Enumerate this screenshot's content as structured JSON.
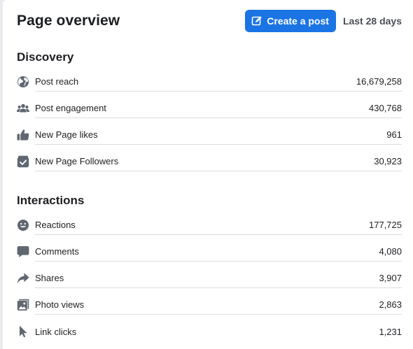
{
  "header": {
    "title": "Page overview",
    "create_post_label": "Create a post",
    "date_range": "Last 28 days"
  },
  "colors": {
    "primary_button": "#1b74e4",
    "icon_gray": "#606770",
    "divider": "#dadde1"
  },
  "discovery": {
    "title": "Discovery",
    "items": [
      {
        "icon": "globe-icon",
        "label": "Post reach",
        "value": "16,679,258"
      },
      {
        "icon": "people-icon",
        "label": "Post engagement",
        "value": "430,768"
      },
      {
        "icon": "thumbs-up-icon",
        "label": "New Page likes",
        "value": "961"
      },
      {
        "icon": "follow-check-icon",
        "label": "New Page Followers",
        "value": "30,923"
      }
    ]
  },
  "interactions": {
    "title": "Interactions",
    "items": [
      {
        "icon": "smiley-icon",
        "label": "Reactions",
        "value": "177,725"
      },
      {
        "icon": "comment-icon",
        "label": "Comments",
        "value": "4,080"
      },
      {
        "icon": "share-arrow-icon",
        "label": "Shares",
        "value": "3,907"
      },
      {
        "icon": "photo-icon",
        "label": "Photo views",
        "value": "2,863"
      },
      {
        "icon": "cursor-icon",
        "label": "Link clicks",
        "value": "1,231"
      }
    ]
  }
}
